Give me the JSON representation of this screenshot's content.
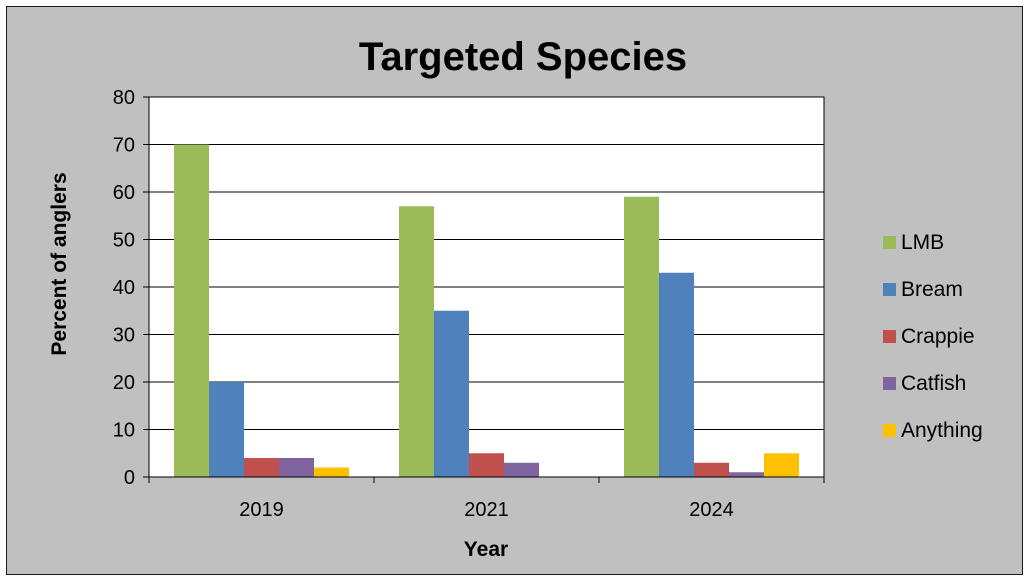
{
  "chart_data": {
    "type": "bar",
    "title": "Targeted Species",
    "xlabel": "Year",
    "ylabel": "Percent of anglers",
    "categories": [
      "2019",
      "2021",
      "2024"
    ],
    "series": [
      {
        "name": "LMB",
        "color": "#9bbb59",
        "values": [
          70,
          57,
          59
        ]
      },
      {
        "name": "Bream",
        "color": "#4f81bd",
        "values": [
          20,
          35,
          43
        ]
      },
      {
        "name": "Crappie",
        "color": "#c0504d",
        "values": [
          4,
          5,
          3
        ]
      },
      {
        "name": "Catfish",
        "color": "#8064a2",
        "values": [
          4,
          3,
          1
        ]
      },
      {
        "name": "Anything",
        "color": "#ffc000",
        "values": [
          2,
          0,
          5
        ]
      }
    ],
    "ylim": [
      0,
      80
    ],
    "yticks": [
      0,
      10,
      20,
      30,
      40,
      50,
      60,
      70,
      80
    ],
    "grid": true,
    "legend_position": "right",
    "plot_background": "#ffffff",
    "chart_background": "#c0c0c0"
  }
}
